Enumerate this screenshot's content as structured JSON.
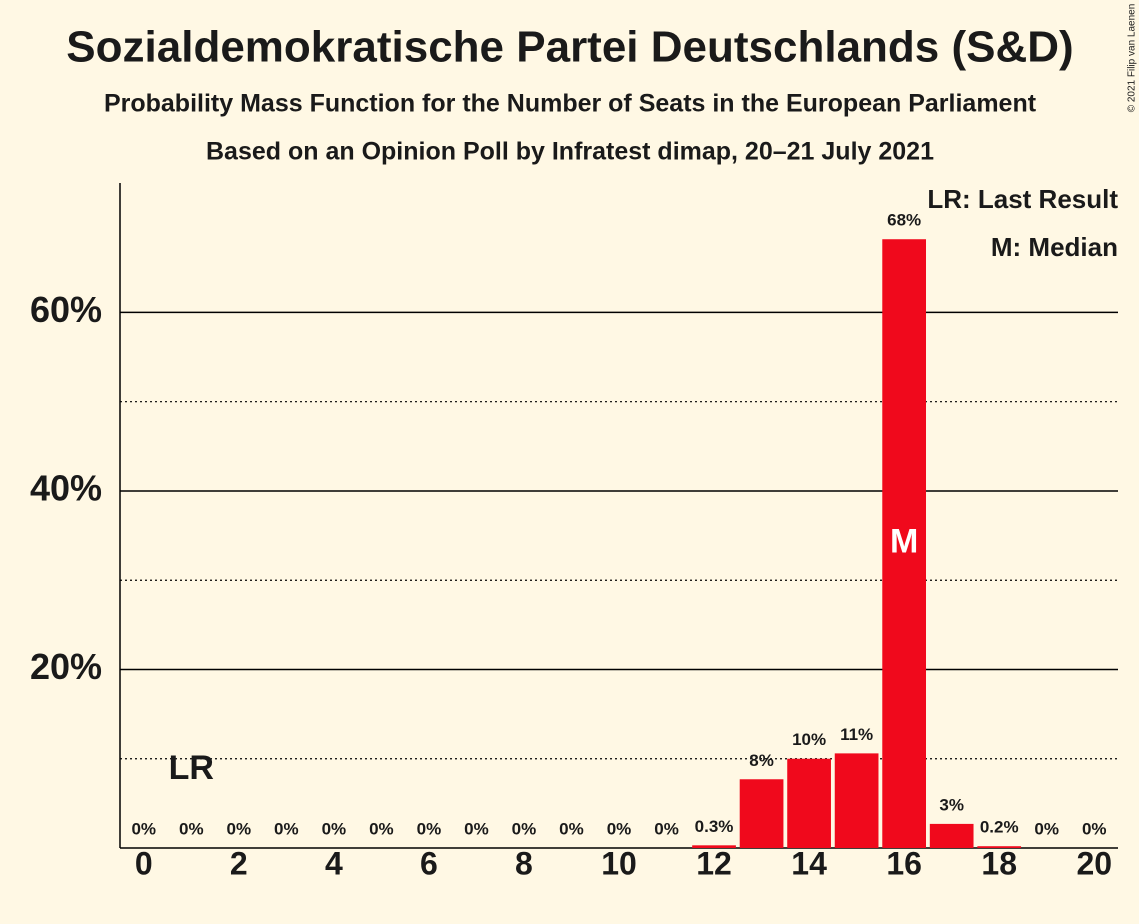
{
  "chart_data": {
    "type": "bar",
    "title": "Sozialdemokratische Partei Deutschlands (S&D)",
    "subtitle": "Probability Mass Function for the Number of Seats in the European Parliament",
    "source": "Based on an Opinion Poll by Infratest dimap, 20–21 July 2021",
    "copyright": "© 2021 Filip van Laenen",
    "x": [
      0,
      1,
      2,
      3,
      4,
      5,
      6,
      7,
      8,
      9,
      10,
      11,
      12,
      13,
      14,
      15,
      16,
      17,
      18,
      19,
      20
    ],
    "values": [
      0,
      0,
      0,
      0,
      0,
      0,
      0,
      0,
      0,
      0,
      0,
      0,
      0.3,
      7.7,
      10,
      10.6,
      68.2,
      2.7,
      0.2,
      0,
      0
    ],
    "value_labels": [
      "0%",
      "0%",
      "0%",
      "0%",
      "0%",
      "0%",
      "0%",
      "0%",
      "0%",
      "0%",
      "0%",
      "0%",
      "0.3%",
      "8%",
      "10%",
      "11%",
      "68%",
      "3%",
      "0.2%",
      "0%",
      "0%"
    ],
    "color": "#f0091c",
    "xlim": [
      -0.5,
      20.5
    ],
    "xticks": [
      0,
      2,
      4,
      6,
      8,
      10,
      12,
      14,
      16,
      18,
      20
    ],
    "ylim": [
      0,
      74.5
    ],
    "yticks": [
      {
        "value": 20,
        "label": "20%"
      },
      {
        "value": 40,
        "label": "40%"
      },
      {
        "value": 60,
        "label": "60%"
      }
    ],
    "minor_yticks": [
      10,
      30,
      50
    ],
    "grid": true,
    "annotations": [
      {
        "text": "LR",
        "x": 1
      },
      {
        "text": "M",
        "x": 16
      }
    ],
    "legend": [
      "LR: Last Result",
      "M: Median"
    ],
    "legend_position": "top-right"
  }
}
